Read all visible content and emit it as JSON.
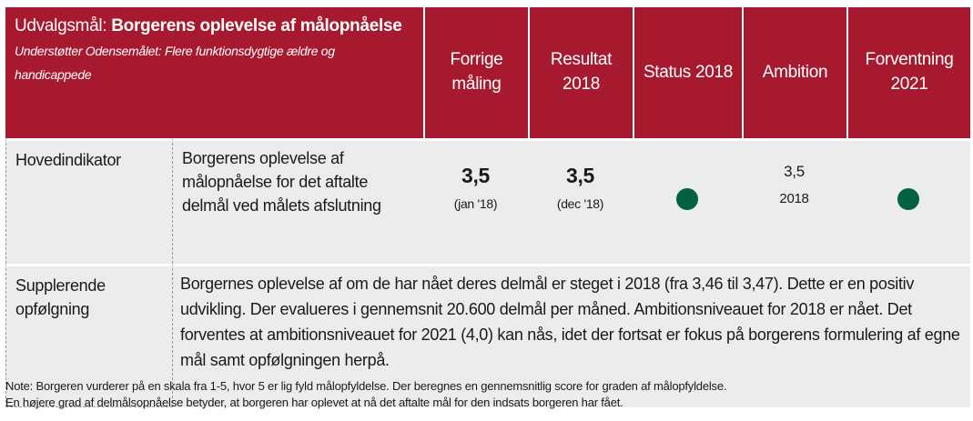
{
  "header": {
    "title_label": "Udvalgsmål:",
    "title": "Borgerens oplevelse af målopnåelse",
    "subtitle": "Understøtter Odensemålet: Flere funktionsdygtige ældre og handicappede",
    "columns": [
      "Forrige måling",
      "Resultat 2018",
      "Status 2018",
      "Ambition",
      "Forventning 2021"
    ]
  },
  "rows": [
    {
      "label": "Hovedindikator",
      "description": "Borgerens oplevelse af målopnåelse for det aftalte delmål ved målets afslutning",
      "previous": {
        "value": "3,5",
        "note": "(jan '18)"
      },
      "result": {
        "value": "3,5",
        "note": "(dec '18)"
      },
      "ambition": {
        "value": "3,5",
        "note": "2018"
      }
    },
    {
      "label": "Supplerende opfølgning",
      "text": "Borgernes oplevelse af om de har nået deres delmål er steget i 2018 (fra 3,46 til 3,47). Dette er en positiv udvikling. Der evalueres i gennemsnit 20.600 delmål per måned. Ambitionsniveauet for 2018 er nået. Det forventes at ambitionsniveauet for 2021 (4,0) kan nås, idet der fortsat er fokus på borgerens formulering af egne mål samt opfølgningen herpå."
    }
  ],
  "note": [
    "Note: Borgeren vurderer på en skala fra 1-5, hvor 5 er lig fyld målopfyldelse. Der beregnes en gennemsnitlig score for graden af målopfyldelse.",
    "En højere grad af delmålsopnåelse betyder, at borgeren har oplevet at nå det aftalte mål for den indsats borgeren har fået."
  ]
}
